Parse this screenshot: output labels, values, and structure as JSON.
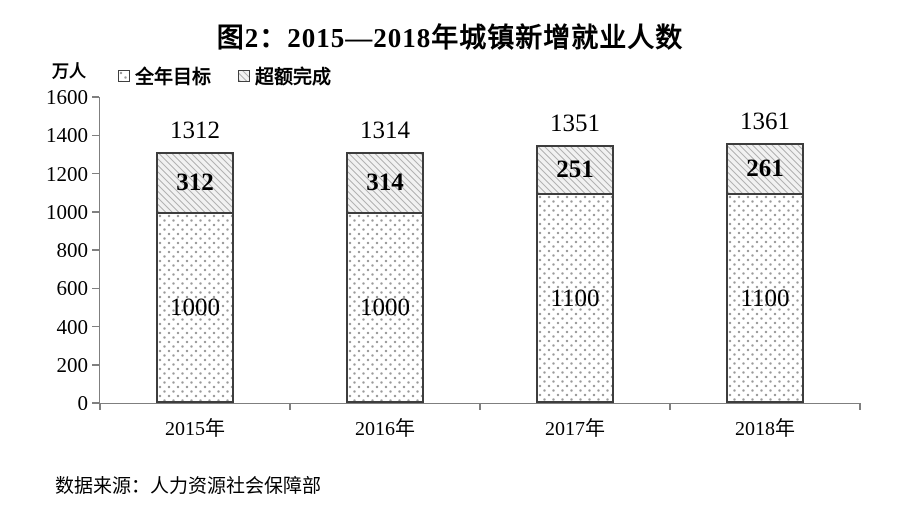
{
  "figure": {
    "title": "图2：2015—2018年城镇新增就业人数",
    "unit_label": "万人",
    "source": "数据来源：人力资源社会保障部"
  },
  "chart_data": {
    "type": "bar",
    "stacked": true,
    "title": "图2：2015—2018年城镇新增就业人数",
    "ylabel": "万人",
    "xlabel": "",
    "categories": [
      "2015年",
      "2016年",
      "2017年",
      "2018年"
    ],
    "series": [
      {
        "name": "全年目标",
        "fill": "dots",
        "values": [
          1000,
          1000,
          1100,
          1100
        ]
      },
      {
        "name": "超额完成",
        "fill": "hatch",
        "values": [
          312,
          314,
          251,
          261
        ]
      }
    ],
    "totals": [
      1312,
      1314,
      1351,
      1361
    ],
    "ylim": [
      0,
      1600
    ],
    "yticks": [
      0,
      200,
      400,
      600,
      800,
      1000,
      1200,
      1400,
      1600
    ],
    "grid": false,
    "legend_position": "top-left"
  },
  "colors": {
    "text": "#000000",
    "axis": "#7f7f7f",
    "bar_border": "#3d3d3d",
    "hatch_line": "#b3b3b3",
    "dot": "#9a9a9a",
    "background": "#ffffff"
  }
}
